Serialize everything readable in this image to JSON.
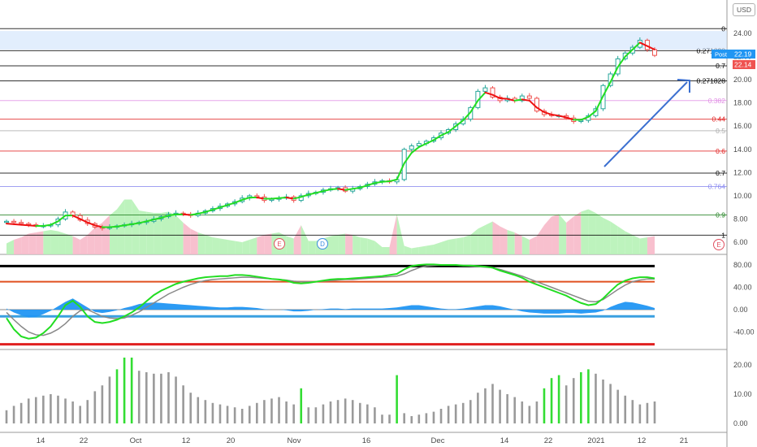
{
  "currency": "USD",
  "colors": {
    "bull": "#26a69a",
    "bear": "#ef5350",
    "ma_up": "#22dd22",
    "ma_down": "#ee1111",
    "vol_bull": "#b6f2b6",
    "vol_bear": "#f7b9c9",
    "macd_hist": "#2196f3",
    "arrow": "#3b6fd0"
  },
  "price_labels": {
    "post_tag": "Post",
    "post_value": "22.19",
    "last_value": "22.14"
  },
  "price_axis_ticks": [
    "24.00",
    "22.00",
    "20.00",
    "18.00",
    "16.00",
    "14.00",
    "12.00",
    "10.00",
    "8.00",
    "6.00"
  ],
  "fib_labels": [
    {
      "text": "0",
      "color": "#000000"
    },
    {
      "text": "0.271828",
      "color": "#000000"
    },
    {
      "text": "0.7",
      "color": "#000000"
    },
    {
      "text": "0.271828",
      "color": "#000000"
    },
    {
      "text": "0.382",
      "color": "#e28fe5"
    },
    {
      "text": "0.44",
      "color": "#e02020"
    },
    {
      "text": "0.5",
      "color": "#aaaaaa"
    },
    {
      "text": "0.6",
      "color": "#e02020"
    },
    {
      "text": "0.7",
      "color": "#000000"
    },
    {
      "text": "0.764",
      "color": "#8a8af0"
    },
    {
      "text": "0.9",
      "color": "#208020"
    },
    {
      "text": "1",
      "color": "#000000"
    }
  ],
  "event_markers": [
    {
      "text": "E",
      "color": "#e05060"
    },
    {
      "text": "D",
      "color": "#3b8de0"
    },
    {
      "text": "E",
      "color": "#e05060"
    }
  ],
  "macd_axis_ticks": [
    "80.00",
    "40.00",
    "0.00",
    "-40.00"
  ],
  "vol_axis_ticks": [
    "20.00",
    "10.00",
    "0.00"
  ],
  "x_ticks": [
    "14",
    "22",
    "Oct",
    "12",
    "20",
    "Nov",
    "16",
    "Dec",
    "14",
    "22",
    "2021",
    "12",
    "21"
  ],
  "chart_data": [
    {
      "type": "candlestick",
      "title": "",
      "y_unit": "USD",
      "ylim": [
        5.3,
        25.0
      ],
      "x": [
        "Sep 9",
        "Sep 10",
        "Sep 11",
        "Sep 14",
        "Sep 15",
        "Sep 16",
        "Sep 17",
        "Sep 18",
        "Sep 21",
        "Sep 22",
        "Sep 23",
        "Sep 24",
        "Sep 25",
        "Sep 28",
        "Sep 29",
        "Sep 30",
        "Oct 1",
        "Oct 2",
        "Oct 5",
        "Oct 6",
        "Oct 7",
        "Oct 8",
        "Oct 9",
        "Oct 12",
        "Oct 13",
        "Oct 14",
        "Oct 15",
        "Oct 16",
        "Oct 19",
        "Oct 20",
        "Oct 21",
        "Oct 22",
        "Oct 23",
        "Oct 26",
        "Oct 27",
        "Oct 28",
        "Oct 29",
        "Oct 30",
        "Nov 2",
        "Nov 3",
        "Nov 4",
        "Nov 5",
        "Nov 6",
        "Nov 9",
        "Nov 10",
        "Nov 11",
        "Nov 12",
        "Nov 13",
        "Nov 16",
        "Nov 17",
        "Nov 18",
        "Nov 19",
        "Nov 20",
        "Nov 23",
        "Nov 24",
        "Nov 25",
        "Nov 27",
        "Nov 30",
        "Dec 1",
        "Dec 2",
        "Dec 3",
        "Dec 4",
        "Dec 7",
        "Dec 8",
        "Dec 9",
        "Dec 10",
        "Dec 11",
        "Dec 14",
        "Dec 15",
        "Dec 16",
        "Dec 17",
        "Dec 18",
        "Dec 21",
        "Dec 22",
        "Dec 23",
        "Dec 24",
        "Dec 28",
        "Dec 29",
        "Dec 30",
        "Dec 31",
        "Jan 4",
        "Jan 5",
        "Jan 6",
        "Jan 7",
        "Jan 8",
        "Jan 11",
        "Jan 12",
        "Jan 13",
        "Jan 14"
      ],
      "close": [
        7.8,
        7.7,
        7.6,
        7.5,
        7.4,
        7.4,
        7.5,
        8.0,
        8.6,
        8.3,
        7.9,
        7.6,
        7.3,
        7.2,
        7.3,
        7.4,
        7.5,
        7.6,
        7.7,
        7.8,
        8.0,
        8.2,
        8.4,
        8.5,
        8.4,
        8.3,
        8.5,
        8.7,
        8.9,
        9.1,
        9.3,
        9.5,
        9.8,
        10.0,
        9.9,
        9.6,
        9.7,
        9.8,
        9.9,
        9.6,
        10.0,
        10.2,
        10.3,
        10.5,
        10.6,
        10.7,
        10.4,
        10.6,
        10.8,
        11.0,
        11.2,
        11.3,
        11.2,
        11.4,
        14.0,
        14.3,
        14.5,
        14.7,
        15.0,
        15.4,
        15.7,
        16.2,
        16.6,
        17.6,
        19.0,
        19.3,
        18.5,
        18.2,
        18.4,
        18.2,
        18.6,
        18.4,
        17.3,
        17.0,
        16.9,
        16.9,
        16.7,
        16.4,
        16.5,
        16.9,
        17.5,
        19.5,
        20.5,
        21.8,
        22.3,
        22.8,
        23.4,
        22.6,
        22.1
      ],
      "ma": [
        7.6,
        7.55,
        7.5,
        7.45,
        7.4,
        7.4,
        7.5,
        7.8,
        8.3,
        8.3,
        8.0,
        7.7,
        7.45,
        7.3,
        7.3,
        7.35,
        7.45,
        7.55,
        7.65,
        7.8,
        7.95,
        8.1,
        8.3,
        8.4,
        8.4,
        8.35,
        8.45,
        8.6,
        8.8,
        9.0,
        9.2,
        9.4,
        9.65,
        9.85,
        9.85,
        9.75,
        9.75,
        9.8,
        9.85,
        9.75,
        9.9,
        10.1,
        10.25,
        10.4,
        10.55,
        10.6,
        10.5,
        10.6,
        10.7,
        10.9,
        11.1,
        11.2,
        11.25,
        11.4,
        12.8,
        13.7,
        14.2,
        14.5,
        14.8,
        15.2,
        15.5,
        16.0,
        16.5,
        17.2,
        18.2,
        18.9,
        18.7,
        18.4,
        18.35,
        18.2,
        18.3,
        18.2,
        17.6,
        17.2,
        17.0,
        16.9,
        16.75,
        16.55,
        16.55,
        16.8,
        17.3,
        18.6,
        19.8,
        21.1,
        22.0,
        22.6,
        23.2,
        22.9,
        22.6
      ],
      "fib_levels": [
        {
          "label": "0",
          "value": 24.4
        },
        {
          "label": "0.271828",
          "value": 22.5
        },
        {
          "label": "0.7",
          "value": 21.2
        },
        {
          "label": "0.271828",
          "value": 19.9
        },
        {
          "label": "0.382",
          "value": 18.2
        },
        {
          "label": "0.44",
          "value": 16.6
        },
        {
          "label": "0.5",
          "value": 15.6
        },
        {
          "label": "0.6",
          "value": 13.85
        },
        {
          "label": "0.7",
          "value": 11.95
        },
        {
          "label": "0.764",
          "value": 10.8
        },
        {
          "label": "0.9",
          "value": 8.35
        },
        {
          "label": "1",
          "value": 6.6
        }
      ]
    },
    {
      "type": "line",
      "title": "",
      "ylim": [
        -78,
        100
      ],
      "levels": [
        78,
        50,
        0,
        -12,
        -62
      ],
      "series": [
        {
          "values": [
            -15,
            -35,
            -48,
            -52,
            -50,
            -42,
            -30,
            -12,
            8,
            16,
            5,
            -12,
            -22,
            -24,
            -22,
            -18,
            -12,
            -5,
            4,
            15,
            26,
            34,
            40,
            46,
            50,
            53,
            56,
            58,
            59,
            60,
            60,
            62,
            62,
            61,
            59,
            57,
            55,
            54,
            52,
            48,
            47,
            48,
            50,
            52,
            54,
            55,
            55,
            56,
            57,
            58,
            59,
            60,
            62,
            64,
            72,
            78,
            80,
            81,
            81,
            80,
            80,
            80,
            79,
            79,
            78,
            77,
            75,
            70,
            66,
            62,
            57,
            50,
            45,
            40,
            35,
            30,
            25,
            18,
            12,
            8,
            10,
            20,
            33,
            45,
            52,
            56,
            58,
            58,
            56
          ]
        },
        {
          "values": [
            -5,
            -18,
            -30,
            -40,
            -45,
            -46,
            -42,
            -35,
            -25,
            -12,
            -2,
            0,
            -6,
            -12,
            -15,
            -16,
            -15,
            -10,
            -4,
            4,
            12,
            20,
            28,
            34,
            40,
            45,
            49,
            52,
            54,
            55,
            56,
            57,
            58,
            58,
            57,
            56,
            55,
            54,
            53,
            51,
            50,
            50,
            50,
            51,
            52,
            53,
            54,
            54,
            55,
            56,
            57,
            58,
            59,
            60,
            64,
            70,
            75,
            78,
            79,
            80,
            80,
            80,
            79,
            78,
            77,
            76,
            75,
            72,
            68,
            64,
            60,
            55,
            50,
            45,
            40,
            35,
            30,
            25,
            20,
            15,
            14,
            18,
            27,
            36,
            44,
            50,
            53,
            55,
            55
          ]
        }
      ],
      "histogram": [
        2,
        -5,
        -10,
        -14,
        -13,
        -8,
        -2,
        6,
        14,
        20,
        12,
        4,
        -4,
        -6,
        -4,
        -1,
        3,
        6,
        10,
        12,
        13,
        12,
        11,
        10,
        9,
        8,
        7,
        6,
        5,
        4,
        4,
        5,
        5,
        4,
        3,
        1,
        0,
        0,
        -1,
        -3,
        -3,
        -2,
        0,
        1,
        2,
        2,
        1,
        2,
        2,
        2,
        2,
        2,
        3,
        4,
        6,
        8,
        8,
        6,
        4,
        2,
        1,
        1,
        2,
        4,
        6,
        8,
        8,
        6,
        3,
        0,
        -3,
        -5,
        -6,
        -7,
        -7,
        -7,
        -6,
        -6,
        -7,
        -6,
        -5,
        -2,
        5,
        10,
        14,
        13,
        10,
        7,
        3
      ]
    },
    {
      "type": "bar",
      "title": "",
      "ylim": [
        -2,
        24
      ],
      "values": [
        4.5,
        6.0,
        7.0,
        8.5,
        9.0,
        9.5,
        10.0,
        9.5,
        8.5,
        7.5,
        6.0,
        8.0,
        11.0,
        13.0,
        16.0,
        18.5,
        22.5,
        22.5,
        18.0,
        17.5,
        17.0,
        17.0,
        17.5,
        16.0,
        13.0,
        10.5,
        9.0,
        8.0,
        7.0,
        6.5,
        6.0,
        5.5,
        5.0,
        6.0,
        7.0,
        8.0,
        8.5,
        9.0,
        7.5,
        6.5,
        12.0,
        5.5,
        5.5,
        6.5,
        7.5,
        8.0,
        8.5,
        8.0,
        7.0,
        6.5,
        5.5,
        3.0,
        3.0,
        16.5,
        3.5,
        2.5,
        3.0,
        3.5,
        4.0,
        5.0,
        6.0,
        6.5,
        7.0,
        8.0,
        10.5,
        12.0,
        13.5,
        11.5,
        10.0,
        9.0,
        7.5,
        6.0,
        7.5,
        12.0,
        15.5,
        16.5,
        13.0,
        15.5,
        17.5,
        18.5,
        17.0,
        15.0,
        13.5,
        11.5,
        9.5,
        8.0,
        6.5,
        7.0,
        7.5
      ],
      "highlight_days": [
        15,
        16,
        17,
        40,
        53,
        73,
        74,
        75,
        78,
        79
      ]
    }
  ]
}
